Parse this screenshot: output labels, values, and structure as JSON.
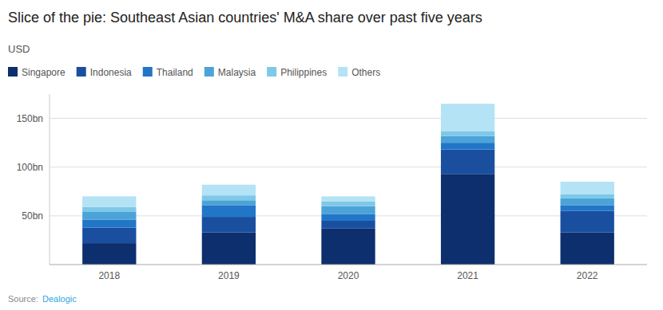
{
  "chart_data": {
    "type": "bar",
    "title": "Slice of the pie: Southeast Asian countries' M&A share over past five years",
    "ylabel": "USD",
    "annotations": [
      "Source: ",
      "Dealogic"
    ],
    "categories": [
      "2018",
      "2019",
      "2020",
      "2021",
      "2022"
    ],
    "series": [
      {
        "name": "Singapore",
        "color": "#0d2f6e",
        "values": [
          22,
          33,
          37,
          93,
          33
        ]
      },
      {
        "name": "Indonesia",
        "color": "#1a4fa0",
        "values": [
          16,
          16,
          8,
          25,
          22
        ]
      },
      {
        "name": "Thailand",
        "color": "#2176c7",
        "values": [
          8,
          12,
          7,
          7,
          6
        ]
      },
      {
        "name": "Malaysia",
        "color": "#4ca3d8",
        "values": [
          8,
          5,
          8,
          7,
          7
        ]
      },
      {
        "name": "Philippines",
        "color": "#7ec8e8",
        "values": [
          5,
          5,
          5,
          5,
          4
        ]
      },
      {
        "name": "Others",
        "color": "#b3e3f5",
        "values": [
          11,
          11,
          5,
          28,
          13
        ]
      }
    ],
    "stacked": true,
    "ylim": [
      0,
      175
    ],
    "yticks": [
      {
        "value": 50,
        "label": "50bn"
      },
      {
        "value": 100,
        "label": "100bn"
      },
      {
        "value": 150,
        "label": "150bn"
      }
    ],
    "grid": true,
    "legend": "top-left"
  }
}
